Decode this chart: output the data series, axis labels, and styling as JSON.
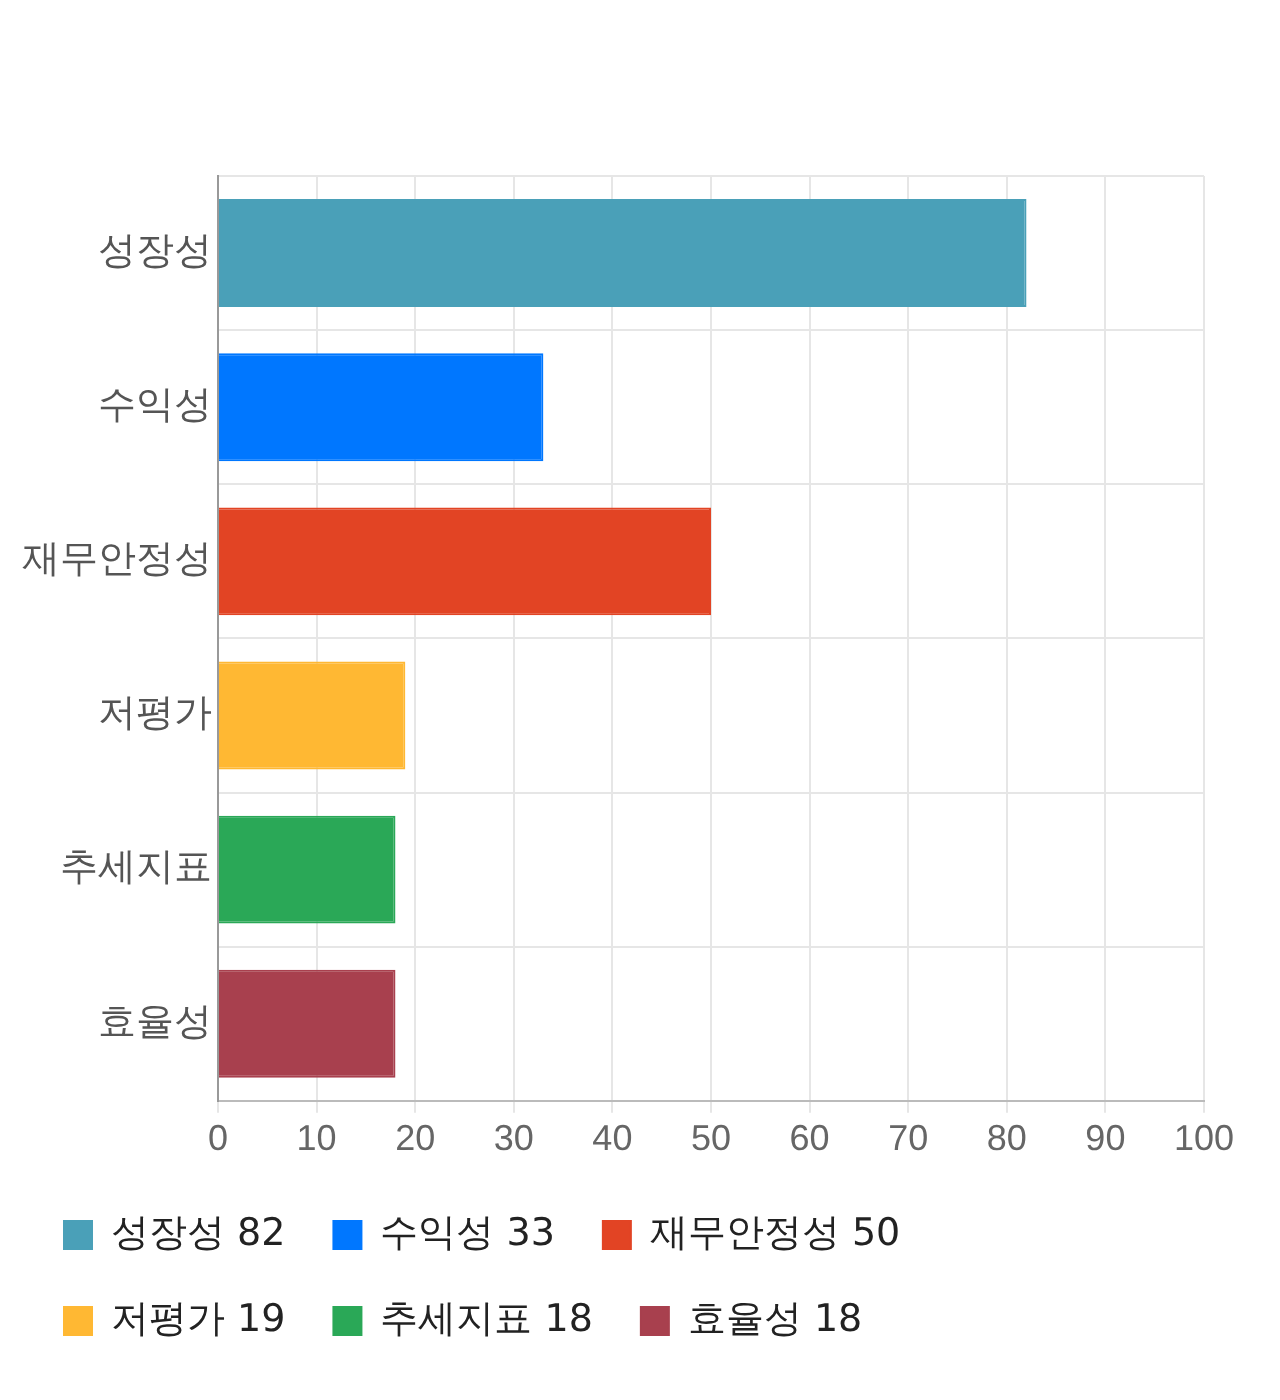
{
  "chart_data": {
    "type": "bar",
    "orientation": "horizontal",
    "categories": [
      "성장성",
      "수익성",
      "재무안정성",
      "저평가",
      "추세지표",
      "효율성"
    ],
    "series": [
      {
        "name": "성장성 82",
        "color": "#4aa0b8",
        "values": [
          82,
          null,
          null,
          null,
          null,
          null
        ]
      },
      {
        "name": "수익성 33",
        "color": "#0077ff",
        "values": [
          null,
          33,
          null,
          null,
          null,
          null
        ]
      },
      {
        "name": "재무안정성 50",
        "color": "#e24424",
        "values": [
          null,
          null,
          50,
          null,
          null,
          null
        ]
      },
      {
        "name": "저평가 19",
        "color": "#ffb833",
        "values": [
          null,
          null,
          null,
          19,
          null,
          null
        ]
      },
      {
        "name": "추세지표 18",
        "color": "#2aa857",
        "values": [
          null,
          null,
          null,
          null,
          18,
          null
        ]
      },
      {
        "name": "효율성 18",
        "color": "#a8404e",
        "values": [
          null,
          null,
          null,
          null,
          null,
          18
        ]
      }
    ],
    "xlim": [
      0,
      100
    ],
    "xticks": [
      0,
      10,
      20,
      30,
      40,
      50,
      60,
      70,
      80,
      90,
      100
    ],
    "grid": true,
    "legend": "bottom"
  }
}
